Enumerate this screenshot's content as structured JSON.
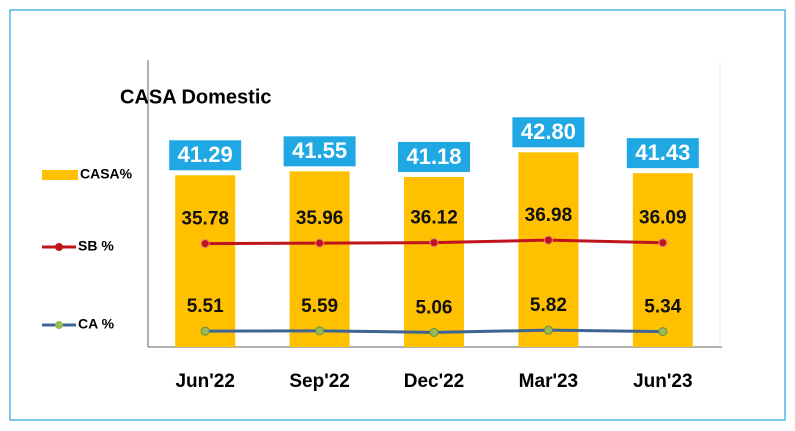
{
  "chart_data": {
    "type": "combo",
    "title": "CASA Domestic",
    "categories": [
      "Jun'22",
      "Sep'22",
      "Dec'22",
      "Mar'23",
      "Jun'23"
    ],
    "series": [
      {
        "name": "CASA%",
        "type": "bar",
        "color": "#ffc000",
        "values": [
          41.29,
          41.55,
          41.18,
          42.8,
          41.43
        ],
        "value_labels": [
          "41.29",
          "41.55",
          "41.18",
          "42.80",
          "41.43"
        ]
      },
      {
        "name": "SB %",
        "type": "line",
        "axis": "y2",
        "color": "#c0141c",
        "values": [
          35.78,
          35.96,
          36.12,
          36.98,
          36.09
        ]
      },
      {
        "name": "CA %",
        "type": "line",
        "axis": "y2",
        "color": "#3d6494",
        "values": [
          5.51,
          5.59,
          5.06,
          5.82,
          5.34
        ]
      }
    ],
    "ylim": [
      30,
      49
    ],
    "y2lim": [
      0,
      100
    ],
    "legend": "left"
  }
}
